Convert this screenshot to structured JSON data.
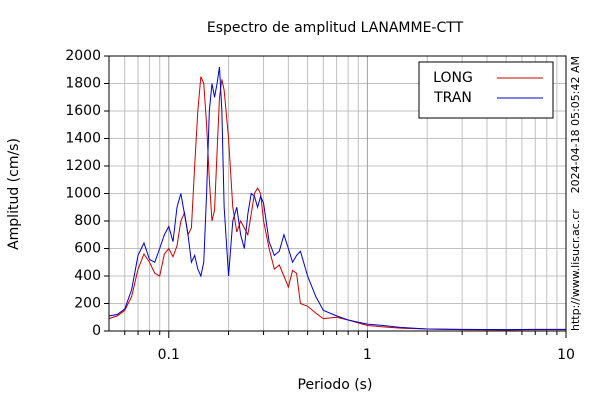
{
  "chart_data": {
    "type": "line",
    "title": "Espectro de amplitud LANAMME-CTT",
    "xlabel": "Periodo (s)",
    "ylabel": "Amplitud (cm/s)",
    "timestamp": "2024-04-18 05:05:42 AM",
    "source": "http://www.lisucr.ac.cr",
    "log_x": true,
    "grid": true,
    "legend": "upper right",
    "xlim": [
      0.05,
      10
    ],
    "xticks": [
      0.1,
      1,
      10
    ],
    "xminorticks": [
      0.06,
      0.07,
      0.08,
      0.09,
      0.2,
      0.3,
      0.4,
      0.5,
      0.6,
      0.7,
      0.8,
      0.9,
      2,
      3,
      4,
      5,
      6,
      7,
      8,
      9
    ],
    "ylim": [
      0,
      2000
    ],
    "yticks": [
      0,
      200,
      400,
      600,
      800,
      1000,
      1200,
      1400,
      1600,
      1800,
      2000
    ],
    "x": [
      0.05,
      0.055,
      0.06,
      0.065,
      0.07,
      0.075,
      0.08,
      0.085,
      0.09,
      0.095,
      0.1,
      0.105,
      0.11,
      0.115,
      0.12,
      0.125,
      0.13,
      0.135,
      0.14,
      0.145,
      0.15,
      0.155,
      0.16,
      0.165,
      0.17,
      0.175,
      0.18,
      0.185,
      0.19,
      0.2,
      0.21,
      0.22,
      0.23,
      0.24,
      0.25,
      0.26,
      0.27,
      0.28,
      0.29,
      0.3,
      0.32,
      0.34,
      0.36,
      0.38,
      0.4,
      0.42,
      0.44,
      0.46,
      0.5,
      0.55,
      0.6,
      0.7,
      0.8,
      1.0,
      1.2,
      1.5,
      2,
      3,
      5,
      7,
      10
    ],
    "series": [
      {
        "name": "LONG",
        "color": "#cc0000",
        "values": [
          90,
          110,
          150,
          250,
          450,
          560,
          500,
          420,
          400,
          560,
          600,
          540,
          620,
          800,
          860,
          700,
          750,
          1200,
          1600,
          1850,
          1800,
          1500,
          1100,
          800,
          880,
          1300,
          1700,
          1830,
          1750,
          1400,
          900,
          720,
          800,
          750,
          700,
          850,
          1000,
          1040,
          1000,
          800,
          600,
          450,
          480,
          400,
          320,
          440,
          420,
          200,
          180,
          130,
          90,
          100,
          80,
          40,
          30,
          20,
          15,
          10,
          8,
          10,
          10
        ]
      },
      {
        "name": "TRAN",
        "color": "#0000cc",
        "values": [
          110,
          120,
          160,
          300,
          550,
          640,
          520,
          500,
          600,
          700,
          760,
          650,
          900,
          1000,
          850,
          700,
          500,
          550,
          450,
          400,
          500,
          1000,
          1600,
          1800,
          1700,
          1800,
          1920,
          1600,
          900,
          400,
          800,
          900,
          700,
          600,
          850,
          1000,
          980,
          900,
          980,
          930,
          650,
          550,
          580,
          700,
          600,
          500,
          550,
          580,
          400,
          250,
          150,
          110,
          80,
          50,
          40,
          25,
          15,
          12,
          10,
          12,
          12
        ]
      }
    ]
  }
}
